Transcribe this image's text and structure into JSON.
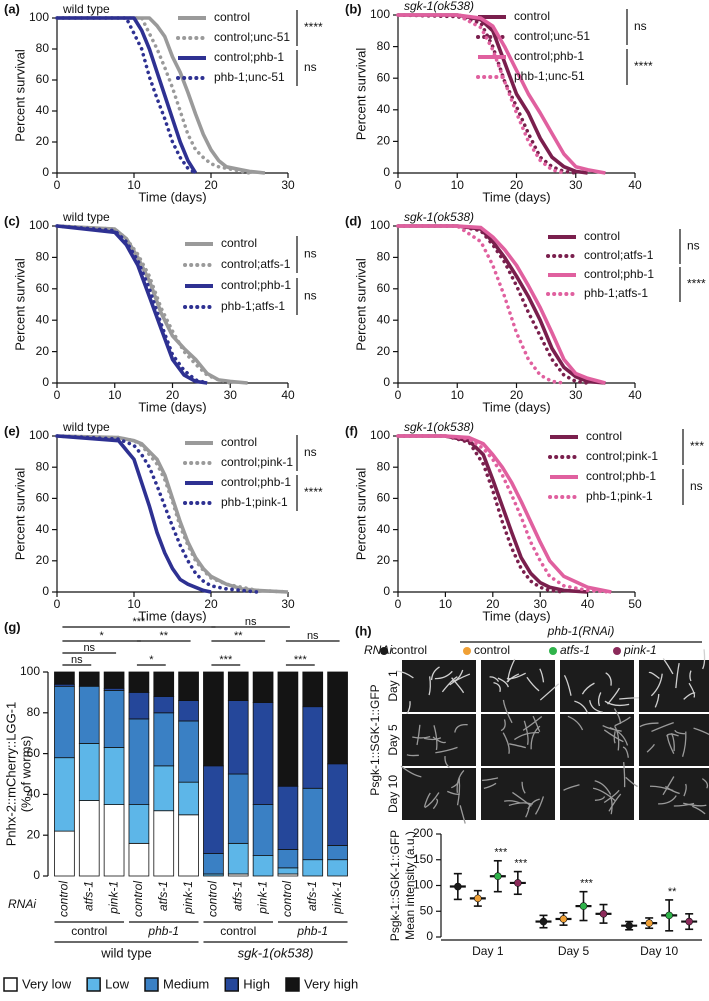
{
  "chart_data": [
    {
      "type": "line",
      "panel": "(a)",
      "title": "wild type",
      "x_label": "Time (days)",
      "y_label": "Percent survival",
      "xlim": [
        0,
        30
      ],
      "xticks": [
        0,
        10,
        20,
        30
      ],
      "ylim": [
        0,
        100
      ],
      "yticks": [
        0,
        20,
        40,
        60,
        80,
        100
      ],
      "x": [
        0,
        9,
        10,
        11,
        12,
        13,
        14,
        15,
        16,
        17,
        18,
        19,
        20,
        21,
        22,
        24,
        25,
        27
      ],
      "series": [
        {
          "name": "control",
          "color": "#9a9a9a",
          "style": "solid",
          "values": [
            100,
            100,
            100,
            100,
            100,
            95,
            88,
            75,
            65,
            52,
            38,
            25,
            15,
            8,
            4,
            2,
            1,
            0
          ]
        },
        {
          "name": "control;unc-51",
          "color": "#9a9a9a",
          "style": "dotted",
          "values": [
            100,
            100,
            100,
            100,
            90,
            80,
            68,
            55,
            40,
            25,
            15,
            10,
            6,
            4,
            3,
            1,
            0,
            null
          ]
        },
        {
          "name": "control;phb-1",
          "color": "#2e3192",
          "style": "solid",
          "values": [
            100,
            100,
            100,
            92,
            80,
            65,
            50,
            35,
            20,
            8,
            0,
            null,
            null,
            null,
            null,
            null,
            null,
            null
          ]
        },
        {
          "name": "phb-1;unc-51",
          "color": "#2e3192",
          "style": "dotted",
          "values": [
            100,
            100,
            90,
            80,
            62,
            48,
            35,
            20,
            10,
            3,
            0,
            null,
            null,
            null,
            null,
            null,
            null,
            null
          ]
        }
      ],
      "significance": [
        "****",
        "ns"
      ]
    },
    {
      "type": "line",
      "panel": "(b)",
      "title": "sgk-1(ok538)",
      "x_label": "Time (days)",
      "y_label": "Percent survival",
      "xlim": [
        0,
        40
      ],
      "xticks": [
        0,
        10,
        20,
        30,
        40
      ],
      "ylim": [
        0,
        100
      ],
      "yticks": [
        0,
        20,
        40,
        60,
        80,
        100
      ],
      "x": [
        0,
        10,
        14,
        16,
        18,
        20,
        22,
        24,
        26,
        28,
        30,
        32,
        35
      ],
      "series": [
        {
          "name": "control",
          "color": "#7a1f4d",
          "style": "solid",
          "values": [
            100,
            100,
            97,
            90,
            70,
            50,
            38,
            22,
            10,
            4,
            1,
            0,
            null
          ]
        },
        {
          "name": "control;unc-51",
          "color": "#7a1f4d",
          "style": "dotted",
          "values": [
            100,
            99,
            95,
            80,
            58,
            42,
            25,
            10,
            4,
            1,
            0,
            null,
            null
          ]
        },
        {
          "name": "control;phb-1",
          "color": "#e0609f",
          "style": "solid",
          "values": [
            100,
            100,
            98,
            93,
            80,
            65,
            50,
            38,
            25,
            12,
            4,
            2,
            0
          ]
        },
        {
          "name": "phb-1;unc-51",
          "color": "#e0609f",
          "style": "dotted",
          "values": [
            100,
            100,
            92,
            78,
            58,
            38,
            20,
            8,
            2,
            0,
            null,
            null,
            null
          ]
        }
      ],
      "significance": [
        "ns",
        "****"
      ]
    },
    {
      "type": "line",
      "panel": "(c)",
      "title": "wild type",
      "x_label": "Time (days)",
      "y_label": "Percent survival",
      "xlim": [
        0,
        40
      ],
      "xticks": [
        0,
        10,
        20,
        30,
        40
      ],
      "ylim": [
        0,
        100
      ],
      "yticks": [
        0,
        20,
        40,
        60,
        80,
        100
      ],
      "x": [
        0,
        10,
        12,
        14,
        16,
        18,
        20,
        22,
        24,
        26,
        28,
        30,
        33
      ],
      "series": [
        {
          "name": "control",
          "color": "#9a9a9a",
          "style": "solid",
          "values": [
            100,
            98,
            92,
            80,
            65,
            45,
            30,
            22,
            15,
            6,
            2,
            1,
            0
          ]
        },
        {
          "name": "control;atfs-1",
          "color": "#9a9a9a",
          "style": "dotted",
          "values": [
            100,
            98,
            92,
            82,
            68,
            48,
            33,
            20,
            12,
            5,
            2,
            0,
            null
          ]
        },
        {
          "name": "control;phb-1",
          "color": "#2e3192",
          "style": "solid",
          "values": [
            100,
            96,
            88,
            75,
            55,
            35,
            15,
            5,
            1,
            0,
            null,
            null,
            null
          ]
        },
        {
          "name": "phb-1;atfs-1",
          "color": "#2e3192",
          "style": "dotted",
          "values": [
            100,
            97,
            90,
            78,
            60,
            38,
            18,
            8,
            2,
            0,
            null,
            null,
            null
          ]
        }
      ],
      "significance": [
        "ns",
        "ns"
      ]
    },
    {
      "type": "line",
      "panel": "(d)",
      "title": "sgk-1(ok538)",
      "x_label": "Time (days)",
      "y_label": "Percent survival",
      "xlim": [
        0,
        40
      ],
      "xticks": [
        0,
        10,
        20,
        30,
        40
      ],
      "ylim": [
        0,
        100
      ],
      "yticks": [
        0,
        20,
        40,
        60,
        80,
        100
      ],
      "x": [
        0,
        10,
        14,
        16,
        18,
        20,
        22,
        24,
        26,
        28,
        30,
        32,
        35
      ],
      "series": [
        {
          "name": "control",
          "color": "#7a1f4d",
          "style": "solid",
          "values": [
            100,
            100,
            98,
            90,
            80,
            68,
            55,
            40,
            22,
            10,
            4,
            1,
            0
          ]
        },
        {
          "name": "control;atfs-1",
          "color": "#7a1f4d",
          "style": "dotted",
          "values": [
            100,
            100,
            97,
            88,
            77,
            62,
            45,
            30,
            15,
            5,
            1,
            0,
            null
          ]
        },
        {
          "name": "control;phb-1",
          "color": "#e0609f",
          "style": "solid",
          "values": [
            100,
            100,
            99,
            93,
            85,
            75,
            62,
            48,
            32,
            15,
            6,
            3,
            0
          ]
        },
        {
          "name": "phb-1;atfs-1",
          "color": "#e0609f",
          "style": "dotted",
          "values": [
            100,
            100,
            90,
            75,
            55,
            32,
            15,
            5,
            1,
            0,
            null,
            null,
            null
          ]
        }
      ],
      "significance": [
        "ns",
        "****"
      ]
    },
    {
      "type": "line",
      "panel": "(e)",
      "title": "wild type",
      "x_label": "Time (days)",
      "y_label": "Percent survival",
      "xlim": [
        0,
        30
      ],
      "xticks": [
        0,
        10,
        20,
        30
      ],
      "ylim": [
        0,
        100
      ],
      "yticks": [
        0,
        20,
        40,
        60,
        80,
        100
      ],
      "x": [
        0,
        8,
        10,
        11,
        12,
        13,
        14,
        15,
        16,
        17,
        18,
        19,
        20,
        22,
        24,
        26,
        30
      ],
      "series": [
        {
          "name": "control",
          "color": "#9a9a9a",
          "style": "solid",
          "values": [
            100,
            99,
            97,
            95,
            90,
            85,
            75,
            60,
            45,
            32,
            22,
            15,
            10,
            5,
            2,
            1,
            0
          ]
        },
        {
          "name": "control;pink-1",
          "color": "#9a9a9a",
          "style": "dotted",
          "values": [
            100,
            99,
            97,
            94,
            88,
            82,
            72,
            58,
            42,
            30,
            20,
            14,
            9,
            5,
            3,
            1,
            0
          ]
        },
        {
          "name": "control;phb-1",
          "color": "#2e3192",
          "style": "solid",
          "values": [
            100,
            97,
            85,
            70,
            55,
            38,
            25,
            15,
            8,
            5,
            3,
            1,
            0,
            null,
            null,
            null,
            null
          ]
        },
        {
          "name": "phb-1;pink-1",
          "color": "#2e3192",
          "style": "dotted",
          "values": [
            100,
            98,
            94,
            88,
            80,
            68,
            55,
            42,
            30,
            20,
            12,
            7,
            4,
            2,
            1,
            0,
            null
          ]
        }
      ],
      "significance": [
        "ns",
        "****"
      ]
    },
    {
      "type": "line",
      "panel": "(f)",
      "title": "sgk-1(ok538)",
      "x_label": "Time (days)",
      "y_label": "Percent survival",
      "xlim": [
        0,
        50
      ],
      "xticks": [
        0,
        10,
        20,
        30,
        40,
        50
      ],
      "ylim": [
        0,
        100
      ],
      "yticks": [
        0,
        20,
        40,
        60,
        80,
        100
      ],
      "x": [
        0,
        10,
        15,
        18,
        20,
        22,
        24,
        26,
        28,
        30,
        32,
        35,
        40,
        45
      ],
      "series": [
        {
          "name": "control",
          "color": "#7a1f4d",
          "style": "solid",
          "values": [
            100,
            100,
            97,
            88,
            72,
            55,
            38,
            22,
            12,
            6,
            3,
            1,
            0,
            null
          ]
        },
        {
          "name": "control;pink-1",
          "color": "#7a1f4d",
          "style": "dotted",
          "values": [
            100,
            100,
            96,
            82,
            65,
            45,
            28,
            15,
            7,
            3,
            1,
            0,
            null,
            null
          ]
        },
        {
          "name": "control;phb-1",
          "color": "#e0609f",
          "style": "solid",
          "values": [
            100,
            100,
            99,
            95,
            88,
            80,
            70,
            58,
            45,
            32,
            20,
            10,
            3,
            0
          ]
        },
        {
          "name": "phb-1;pink-1",
          "color": "#e0609f",
          "style": "dotted",
          "values": [
            100,
            100,
            98,
            92,
            85,
            75,
            62,
            48,
            32,
            20,
            10,
            4,
            1,
            0
          ]
        }
      ],
      "significance": [
        "***",
        "ns"
      ]
    },
    {
      "type": "stacked_bar",
      "panel": "(g)",
      "y_label": [
        "Pnhx-2::mCherry::LGG-1",
        "(% of worms)"
      ],
      "ylim": [
        0,
        100
      ],
      "yticks": [
        0,
        20,
        40,
        60,
        80,
        100
      ],
      "row_label": "RNAi",
      "categories": [
        "control",
        "atfs-1",
        "pink-1",
        "control",
        "atfs-1",
        "pink-1",
        "control",
        "atfs-1",
        "pink-1",
        "control",
        "atfs-1",
        "pink-1"
      ],
      "subgroups": [
        "control",
        "phb-1",
        "control",
        "phb-1"
      ],
      "groups": [
        "wild type",
        "sgk-1(ok538)"
      ],
      "series": [
        {
          "name": "Very low",
          "color": "#ffffff",
          "values": [
            22,
            37,
            35,
            16,
            32,
            30,
            0,
            1,
            0,
            1,
            0,
            0
          ]
        },
        {
          "name": "Low",
          "color": "#5db6e8",
          "values": [
            36,
            28,
            28,
            19,
            22,
            16,
            1,
            15,
            10,
            3,
            8,
            8
          ]
        },
        {
          "name": "Medium",
          "color": "#3a80c4",
          "values": [
            35,
            28,
            28,
            42,
            26,
            30,
            10,
            34,
            25,
            9,
            35,
            7
          ]
        },
        {
          "name": "High",
          "color": "#25479a",
          "values": [
            1,
            0,
            1,
            13,
            8,
            10,
            43,
            36,
            50,
            31,
            40,
            40
          ]
        },
        {
          "name": "Very high",
          "color": "#141414",
          "values": [
            6,
            7,
            8,
            10,
            12,
            14,
            46,
            14,
            15,
            56,
            17,
            45
          ]
        }
      ],
      "significance": [
        "***",
        "*",
        "ns",
        "ns",
        "**",
        "*",
        "ns",
        "**",
        "***",
        "ns",
        "***"
      ]
    },
    {
      "type": "errorbar",
      "panel": "(h)",
      "rnai_label": "RNAi",
      "group_label": "phb-1(RNAi)",
      "image_rows": [
        "Day 1",
        "Day 5",
        "Day 10"
      ],
      "image_label": "Psgk-1::SGK-1::GFP",
      "y_label": [
        "Psgk-1::SGK-1::GFP",
        "Mean intensity (a.u.)"
      ],
      "ylim": [
        0,
        200
      ],
      "yticks": [
        0,
        50,
        100,
        150,
        200
      ],
      "categories": [
        "Day 1",
        "Day 5",
        "Day 10"
      ],
      "series": [
        {
          "name": "control",
          "color": "#1a1a1a",
          "values": [
            98,
            30,
            22
          ],
          "errors": [
            25,
            12,
            8
          ]
        },
        {
          "name": "control",
          "color": "#f0a035",
          "values": [
            75,
            35,
            27
          ],
          "errors": [
            15,
            12,
            10
          ]
        },
        {
          "name": "atfs-1",
          "color": "#2fb34a",
          "values": [
            118,
            60,
            42
          ],
          "errors": [
            30,
            28,
            30
          ],
          "significance": [
            "***",
            "***",
            "**"
          ]
        },
        {
          "name": "pink-1",
          "color": "#8b2a5a",
          "values": [
            105,
            45,
            30
          ],
          "errors": [
            22,
            18,
            15
          ],
          "significance": [
            "***",
            null,
            null
          ]
        }
      ]
    }
  ]
}
